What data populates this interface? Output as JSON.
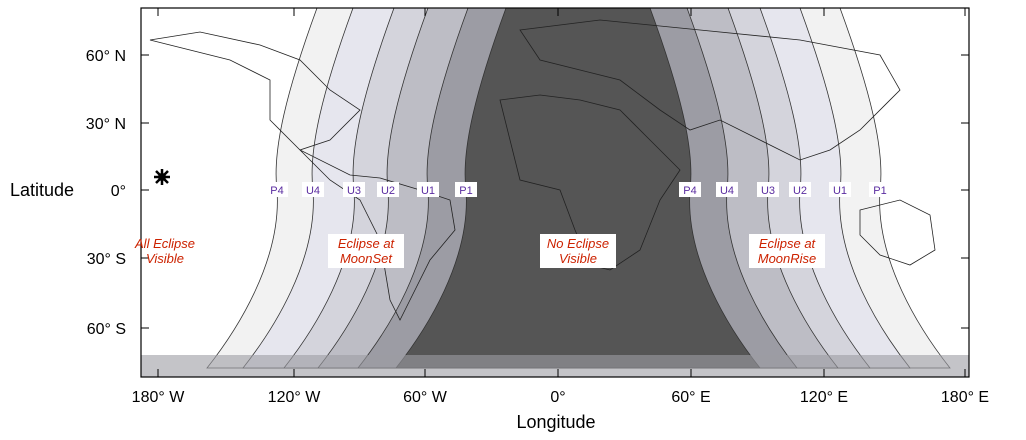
{
  "map": {
    "x_axis_label": "Longitude",
    "y_axis_label": "Latitude",
    "x_ticks": [
      "180° W",
      "120° W",
      "60° W",
      "0°",
      "60° E",
      "120° E",
      "180° E"
    ],
    "y_ticks": [
      "60° N",
      "30° N",
      "0°",
      "30° S",
      "60° S"
    ],
    "contact_labels_west": [
      "P4",
      "U4",
      "U3",
      "U2",
      "U1",
      "P1"
    ],
    "contact_labels_east": [
      "P4",
      "U4",
      "U3",
      "U2",
      "U1",
      "P1"
    ],
    "region_labels": [
      [
        "All Eclipse",
        "Visible"
      ],
      [
        "Eclipse at",
        "MoonSet"
      ],
      [
        "No Eclipse",
        "Visible"
      ],
      [
        "Eclipse at",
        "MoonRise"
      ]
    ]
  }
}
